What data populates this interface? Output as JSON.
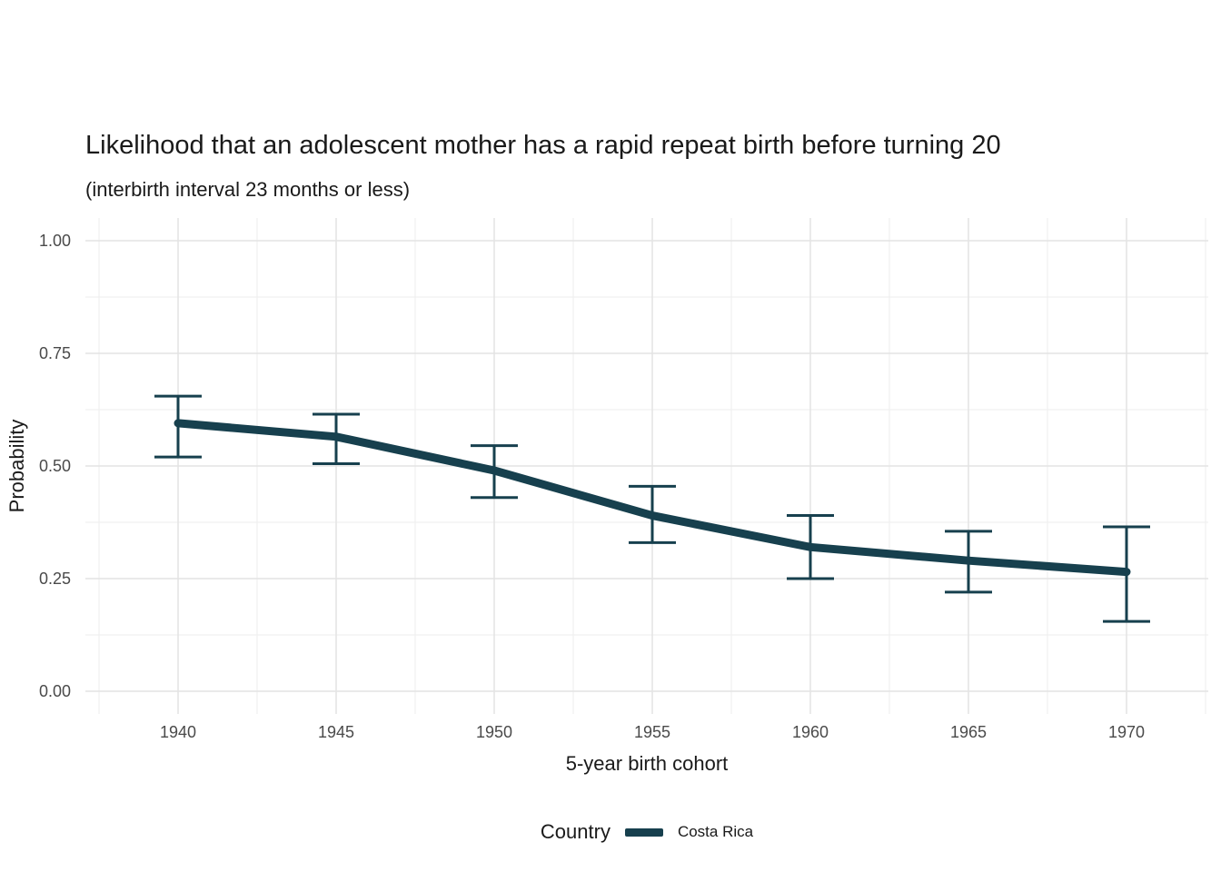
{
  "chart_data": {
    "type": "line",
    "title": "Likelihood that an adolescent mother has a rapid repeat birth before turning 20",
    "subtitle": "(interbirth interval 23 months or less)",
    "xlabel": "5-year birth cohort",
    "ylabel": "Probability",
    "x": [
      1940,
      1945,
      1950,
      1955,
      1960,
      1965,
      1970
    ],
    "xtick_labels": [
      "1940",
      "1945",
      "1950",
      "1955",
      "1960",
      "1965",
      "1970"
    ],
    "series": [
      {
        "name": "Costa Rica",
        "values": [
          0.595,
          0.565,
          0.49,
          0.39,
          0.32,
          0.29,
          0.265
        ],
        "ci_lower": [
          0.52,
          0.505,
          0.43,
          0.33,
          0.25,
          0.22,
          0.155
        ],
        "ci_upper": [
          0.655,
          0.615,
          0.545,
          0.455,
          0.39,
          0.355,
          0.365
        ]
      }
    ],
    "ylim": [
      0,
      1
    ],
    "yticks": [
      0,
      0.25,
      0.5,
      0.75,
      1
    ],
    "ytick_labels": [
      "0.00",
      "0.25",
      "0.50",
      "0.75",
      "1.00"
    ],
    "grid": true,
    "legend": {
      "title": "Country",
      "position": "bottom",
      "entries": [
        "Costa Rica"
      ]
    }
  },
  "colors": {
    "line": "#17404E",
    "grid_major": "#E3E3E3",
    "grid_minor": "#F0F0F0",
    "tick_text": "#4A4A4A",
    "axis_text": "#1A1A1A",
    "background": "#FFFFFF"
  }
}
